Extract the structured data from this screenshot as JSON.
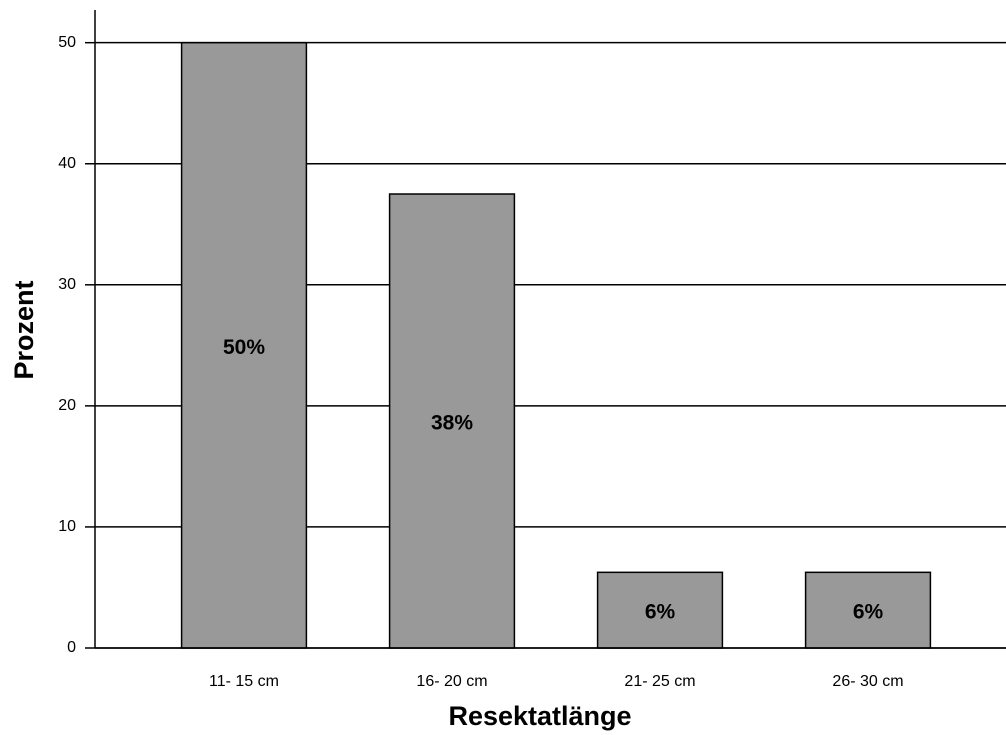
{
  "chart_data": {
    "type": "bar",
    "x_label": "Resektatlänge",
    "y_label": "Prozent",
    "categories": [
      "11- 15 cm",
      "16- 20 cm",
      "21- 25 cm",
      "26- 30 cm"
    ],
    "values": [
      50,
      37.5,
      6.25,
      6.25
    ],
    "value_labels": [
      "50%",
      "38%",
      "6%",
      "6%"
    ],
    "color": "#999999",
    "ylim": [
      0,
      52.7
    ],
    "yticks": [
      0,
      10,
      20,
      30,
      40,
      50
    ],
    "grid": true
  }
}
